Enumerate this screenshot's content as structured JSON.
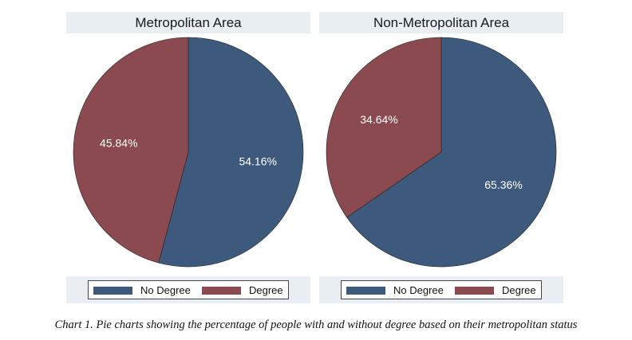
{
  "colors": {
    "no_degree": "#3d5a7c",
    "degree": "#8b4a4f",
    "band": "#e9eef3"
  },
  "legend": {
    "no_degree": "No Degree",
    "degree": "Degree"
  },
  "caption": "Chart 1. Pie charts showing the percentage of people with and without degree based on their metropolitan status",
  "chart_data": [
    {
      "type": "pie",
      "title": "Metropolitan Area",
      "slices": [
        {
          "name": "No Degree",
          "value": 54.16,
          "label": "54.16%"
        },
        {
          "name": "Degree",
          "value": 45.84,
          "label": "45.84%"
        }
      ],
      "legend_position": "bottom"
    },
    {
      "type": "pie",
      "title": "Non-Metropolitan Area",
      "slices": [
        {
          "name": "No Degree",
          "value": 65.36,
          "label": "65.36%"
        },
        {
          "name": "Degree",
          "value": 34.64,
          "label": "34.64%"
        }
      ],
      "legend_position": "bottom"
    }
  ]
}
